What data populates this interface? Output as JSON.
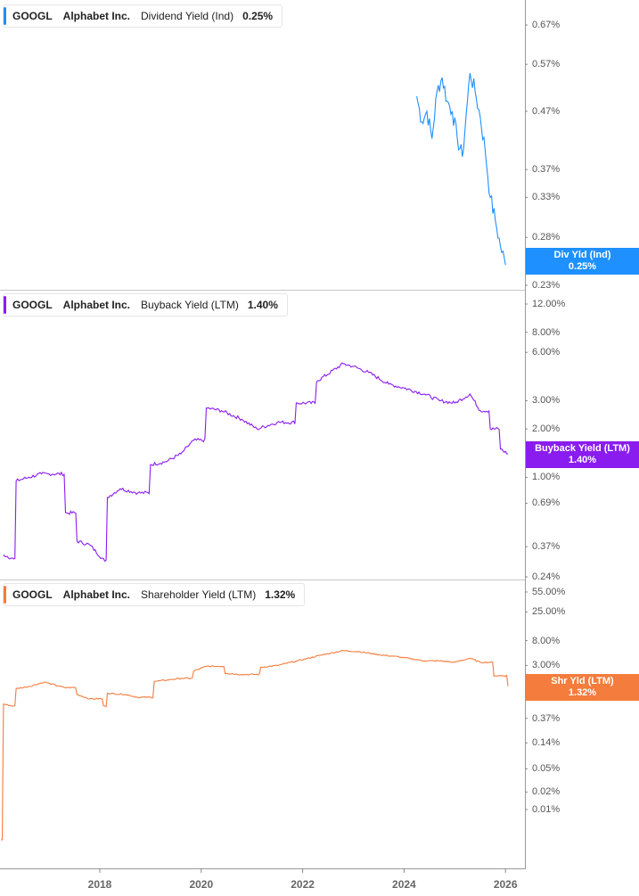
{
  "panels": [
    {
      "ticker": "GOOGL",
      "company": "Alphabet Inc.",
      "metric": "Dividend Yield (Ind)",
      "value": "0.25%",
      "color": "#1e90ff",
      "tag_label": "Div Yld (Ind)",
      "tag_value": "0.25%",
      "y_ticks": [
        "0.67%",
        "0.57%",
        "0.47%",
        "0.37%",
        "0.33%",
        "0.28%",
        "0.23%"
      ]
    },
    {
      "ticker": "GOOGL",
      "company": "Alphabet Inc.",
      "metric": "Buyback Yield (LTM)",
      "value": "1.40%",
      "color": "#8a1cf0",
      "tag_label": "Buyback Yield (LTM)",
      "tag_value": "1.40%",
      "y_ticks": [
        "12.00%",
        "8.00%",
        "6.00%",
        "3.00%",
        "2.00%",
        "1.00%",
        "0.69%",
        "0.37%",
        "0.24%"
      ]
    },
    {
      "ticker": "GOOGL",
      "company": "Alphabet Inc.",
      "metric": "Shareholder Yield (LTM)",
      "value": "1.32%",
      "color": "#f47c3c",
      "tag_label": "Shr Yld (LTM)",
      "tag_value": "1.32%",
      "y_ticks": [
        "55.00%",
        "25.00%",
        "8.00%",
        "3.00%",
        "1.00%",
        "0.37%",
        "0.14%",
        "0.05%",
        "0.02%",
        "0.01%"
      ]
    }
  ],
  "x_axis": {
    "ticks": [
      "2018",
      "2020",
      "2022",
      "2024",
      "2026"
    ]
  },
  "chart_data": [
    {
      "type": "line",
      "title": "GOOGL Alphabet Inc. Dividend Yield (Ind) 0.25%",
      "series_name": "Div Yld (Ind)",
      "color": "#1e90ff",
      "yscale": "log",
      "ylim": [
        0.23,
        0.7
      ],
      "y_ticks": [
        0.67,
        0.57,
        0.47,
        0.37,
        0.33,
        0.28,
        0.23
      ],
      "x": [
        2024.25,
        2024.35,
        2024.45,
        2024.55,
        2024.65,
        2024.75,
        2024.85,
        2024.95,
        2025.05,
        2025.15,
        2025.25,
        2025.3,
        2025.4,
        2025.5,
        2025.6,
        2025.7,
        2025.8,
        2025.9,
        2026.0
      ],
      "values": [
        0.5,
        0.45,
        0.47,
        0.42,
        0.51,
        0.54,
        0.49,
        0.47,
        0.42,
        0.39,
        0.49,
        0.55,
        0.51,
        0.46,
        0.4,
        0.33,
        0.3,
        0.27,
        0.25
      ]
    },
    {
      "type": "line",
      "title": "GOOGL Alphabet Inc. Buyback Yield (LTM) 1.40%",
      "series_name": "Buyback Yield (LTM)",
      "color": "#8a1cf0",
      "yscale": "log",
      "ylim": [
        0.24,
        12.0
      ],
      "y_ticks": [
        12.0,
        8.0,
        6.0,
        3.0,
        2.0,
        1.0,
        0.69,
        0.37,
        0.24
      ],
      "x": [
        2016.1,
        2016.3,
        2016.35,
        2016.6,
        2016.85,
        2017.0,
        2017.35,
        2017.55,
        2017.8,
        2018.1,
        2018.15,
        2018.4,
        2018.75,
        2019.0,
        2019.3,
        2019.6,
        2019.85,
        2020.1,
        2020.4,
        2020.8,
        2021.1,
        2021.5,
        2021.9,
        2022.3,
        2022.8,
        2023.0,
        2023.3,
        2023.7,
        2024.0,
        2024.4,
        2024.7,
        2025.0,
        2025.3,
        2025.5,
        2025.7,
        2025.9,
        2026.05
      ],
      "values": [
        0.33,
        0.31,
        0.95,
        1.0,
        1.05,
        1.05,
        0.6,
        0.4,
        0.38,
        0.3,
        0.75,
        0.85,
        0.8,
        1.2,
        1.25,
        1.4,
        1.7,
        2.7,
        2.6,
        2.3,
        2.0,
        2.2,
        2.9,
        4.0,
        5.1,
        4.9,
        4.5,
        3.8,
        3.6,
        3.3,
        3.0,
        2.9,
        3.3,
        2.6,
        2.0,
        1.5,
        1.4
      ]
    },
    {
      "type": "line",
      "title": "GOOGL Alphabet Inc. Shareholder Yield (LTM) 1.32%",
      "series_name": "Shr Yld (LTM)",
      "color": "#f47c3c",
      "yscale": "log",
      "ylim": [
        0.005,
        60.0
      ],
      "y_ticks": [
        55.0,
        25.0,
        8.0,
        3.0,
        1.0,
        0.37,
        0.14,
        0.05,
        0.02,
        0.01
      ],
      "x": [
        2016.05,
        2016.1,
        2016.3,
        2016.35,
        2016.6,
        2016.9,
        2017.3,
        2017.55,
        2017.8,
        2018.1,
        2018.15,
        2018.5,
        2018.75,
        2019.1,
        2019.6,
        2019.85,
        2020.1,
        2020.5,
        2020.8,
        2021.2,
        2021.5,
        2021.9,
        2022.4,
        2022.8,
        2023.1,
        2023.5,
        2023.9,
        2024.4,
        2024.7,
        2025.0,
        2025.3,
        2025.5,
        2025.8,
        2026.05
      ],
      "values": [
        0.003,
        0.65,
        0.6,
        1.2,
        1.3,
        1.55,
        1.25,
        0.95,
        0.8,
        0.6,
        1.0,
        0.95,
        0.85,
        1.6,
        1.8,
        2.4,
        2.9,
        2.2,
        2.1,
        2.8,
        3.0,
        3.6,
        4.6,
        5.4,
        5.2,
        4.6,
        4.2,
        3.6,
        3.6,
        3.4,
        4.0,
        3.4,
        2.0,
        1.32
      ]
    }
  ]
}
